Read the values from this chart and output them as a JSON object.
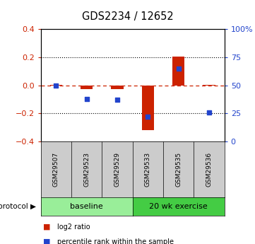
{
  "title": "GDS2234 / 12652",
  "samples": [
    "GSM29507",
    "GSM29523",
    "GSM29529",
    "GSM29533",
    "GSM29535",
    "GSM29536"
  ],
  "log2_ratio": [
    0.002,
    -0.028,
    -0.025,
    -0.32,
    0.205,
    0.003
  ],
  "percentile_rank": [
    50,
    38,
    37,
    22,
    65,
    26
  ],
  "protocol_groups": [
    {
      "label": "baseline",
      "n_samples": 3,
      "color": "#99ee99"
    },
    {
      "label": "20 wk exercise",
      "n_samples": 3,
      "color": "#44cc44"
    }
  ],
  "ylim": [
    -0.4,
    0.4
  ],
  "yticks_left": [
    -0.4,
    -0.2,
    0.0,
    0.2,
    0.4
  ],
  "yticks_right": [
    0,
    25,
    50,
    75,
    100
  ],
  "bar_color": "#cc2200",
  "dot_color": "#2244cc",
  "dashed_line_color": "#cc2200",
  "label_box_color": "#cccccc",
  "background_color": "#ffffff"
}
